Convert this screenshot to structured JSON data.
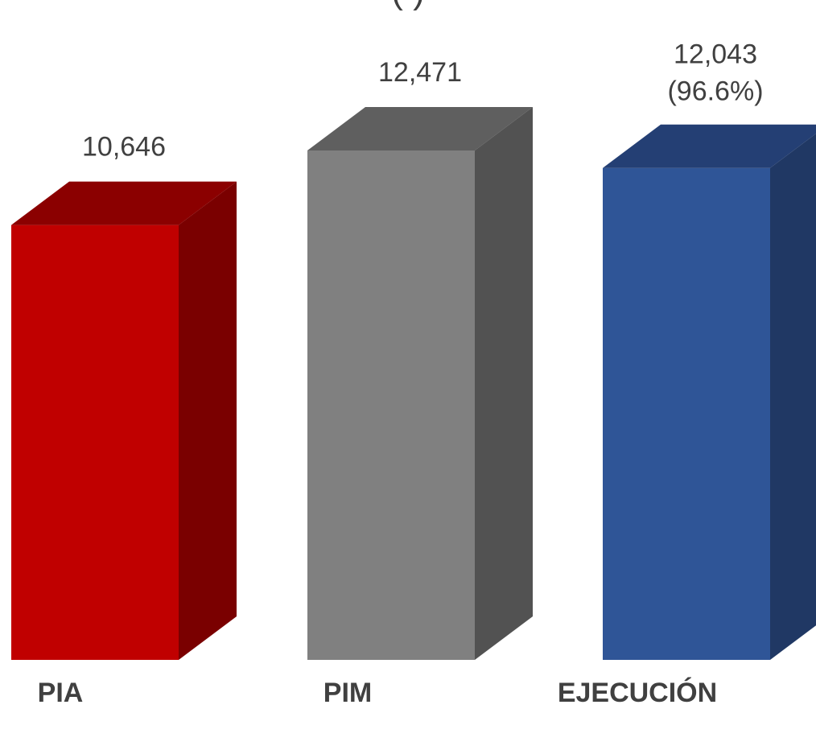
{
  "chart_data": {
    "type": "bar",
    "style": "3d-column",
    "title_fragment": "(                              )",
    "categories": [
      "PIA",
      "PIM",
      "EJECUCIÓN"
    ],
    "values": [
      10646,
      12471,
      12043
    ],
    "value_labels": [
      "10,646",
      "12,471",
      "12,043"
    ],
    "percent_labels": [
      "",
      "",
      "(96.6%)"
    ],
    "ylim": [
      0,
      12471
    ],
    "grid": false,
    "legend": "none",
    "colors": [
      {
        "front": "#c00000",
        "top": "#8b0000",
        "side": "#7a0000"
      },
      {
        "front": "#808080",
        "top": "#5f5f5f",
        "side": "#525252"
      },
      {
        "front": "#2f5597",
        "top": "#243f74",
        "side": "#203864"
      }
    ]
  }
}
